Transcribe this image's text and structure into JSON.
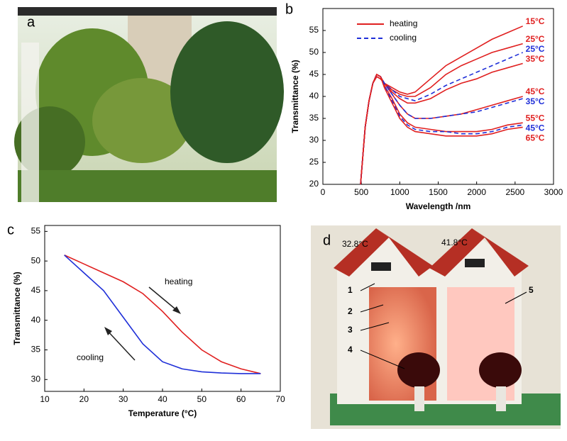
{
  "panel_labels": [
    "a",
    "b",
    "c",
    "d"
  ],
  "photo_d_labels": {
    "temperatures": [
      "32.8°C",
      "41.8°C"
    ],
    "numbers": [
      "1",
      "2",
      "3",
      "4",
      "5"
    ]
  },
  "chart_data": [
    {
      "type": "line",
      "xlabel": "Wavelength /nm",
      "ylabel": "Transmittance (%)",
      "x": [
        490,
        550,
        600,
        650,
        700,
        750,
        800,
        900,
        1000,
        1100,
        1200,
        1400,
        1600,
        1800,
        2000,
        2200,
        2400,
        2600
      ],
      "xlim": [
        0,
        3000
      ],
      "xticks": [
        0,
        500,
        1000,
        1500,
        2000,
        2500,
        3000
      ],
      "ylim": [
        20,
        60
      ],
      "yticks": [
        20,
        25,
        30,
        35,
        40,
        45,
        50,
        55
      ],
      "legend": [
        {
          "name": "heating",
          "color": "#e02020",
          "dashed": false
        },
        {
          "name": "cooling",
          "color": "#1f2fd8",
          "dashed": true
        }
      ],
      "series": [
        {
          "name": "15°C",
          "color": "#e02020",
          "dashed": false,
          "values": [
            20,
            33,
            39,
            43,
            44.5,
            44,
            43,
            42,
            41,
            40.5,
            41,
            44,
            47,
            49,
            51,
            53,
            54.5,
            56
          ]
        },
        {
          "name": "25°C",
          "color": "#e02020",
          "dashed": false,
          "values": [
            20,
            33,
            39,
            43,
            44.5,
            44,
            43,
            41.5,
            40.5,
            40,
            40,
            42,
            45,
            47,
            48.5,
            50,
            51,
            52
          ]
        },
        {
          "name": "25°C",
          "color": "#1f2fd8",
          "dashed": true,
          "values": [
            20,
            33,
            39,
            43,
            45,
            44.5,
            43,
            41.5,
            40,
            39.5,
            39,
            40.5,
            42.5,
            44,
            45.5,
            47,
            48.5,
            50
          ]
        },
        {
          "name": "35°C",
          "color": "#e02020",
          "dashed": false,
          "values": [
            20,
            33,
            39,
            43,
            44.5,
            44,
            43,
            41,
            39.5,
            38.5,
            38.5,
            39.5,
            41.5,
            43,
            44,
            45.5,
            46.5,
            47.5
          ]
        },
        {
          "name": "45°C",
          "color": "#e02020",
          "dashed": false,
          "values": [
            20,
            33,
            39,
            43,
            45,
            44.5,
            43,
            40.5,
            38,
            36,
            35,
            35,
            35.5,
            36,
            37,
            38,
            39,
            40
          ]
        },
        {
          "name": "35°C",
          "color": "#1f2fd8",
          "dashed": true,
          "values": [
            20,
            33,
            39,
            43,
            45,
            44.5,
            43,
            40.5,
            38,
            36,
            35,
            35,
            35.5,
            36,
            36.5,
            37.5,
            38.5,
            39.5
          ]
        },
        {
          "name": "55°C",
          "color": "#e02020",
          "dashed": false,
          "values": [
            20,
            33,
            39,
            43,
            45,
            44.5,
            42.5,
            39.5,
            36,
            34,
            33,
            32.5,
            32,
            32,
            32,
            32.5,
            33.5,
            34
          ]
        },
        {
          "name": "45°C",
          "color": "#1f2fd8",
          "dashed": true,
          "values": [
            20,
            33,
            39,
            43,
            45,
            44.5,
            42.5,
            39,
            35.5,
            33.5,
            32.5,
            32,
            32,
            31.5,
            31.5,
            32,
            33,
            33.5
          ]
        },
        {
          "name": "65°C",
          "color": "#e02020",
          "dashed": false,
          "values": [
            20,
            33,
            39,
            43,
            45,
            44.5,
            42,
            38.5,
            35,
            33,
            32,
            31.5,
            31,
            31,
            31,
            31.5,
            32.5,
            33
          ]
        }
      ]
    },
    {
      "type": "line",
      "xlabel": "Temperature (°C)",
      "ylabel": "Transmittance (%)",
      "x": [
        15,
        20,
        25,
        30,
        35,
        40,
        45,
        50,
        55,
        60,
        65
      ],
      "xlim": [
        10,
        70
      ],
      "xticks": [
        10,
        20,
        30,
        40,
        50,
        60,
        70
      ],
      "ylim": [
        28,
        56
      ],
      "yticks": [
        30,
        35,
        40,
        45,
        50,
        55
      ],
      "series": [
        {
          "name": "heating",
          "color": "#e02020",
          "dashed": false,
          "values": [
            51,
            49.5,
            48,
            46.5,
            44.5,
            41.5,
            38,
            35,
            33,
            31.8,
            31
          ]
        },
        {
          "name": "cooling",
          "color": "#1f2fd8",
          "dashed": false,
          "values": [
            51,
            48,
            45,
            40.5,
            36,
            33,
            31.8,
            31.3,
            31.1,
            31,
            31
          ]
        }
      ]
    }
  ]
}
